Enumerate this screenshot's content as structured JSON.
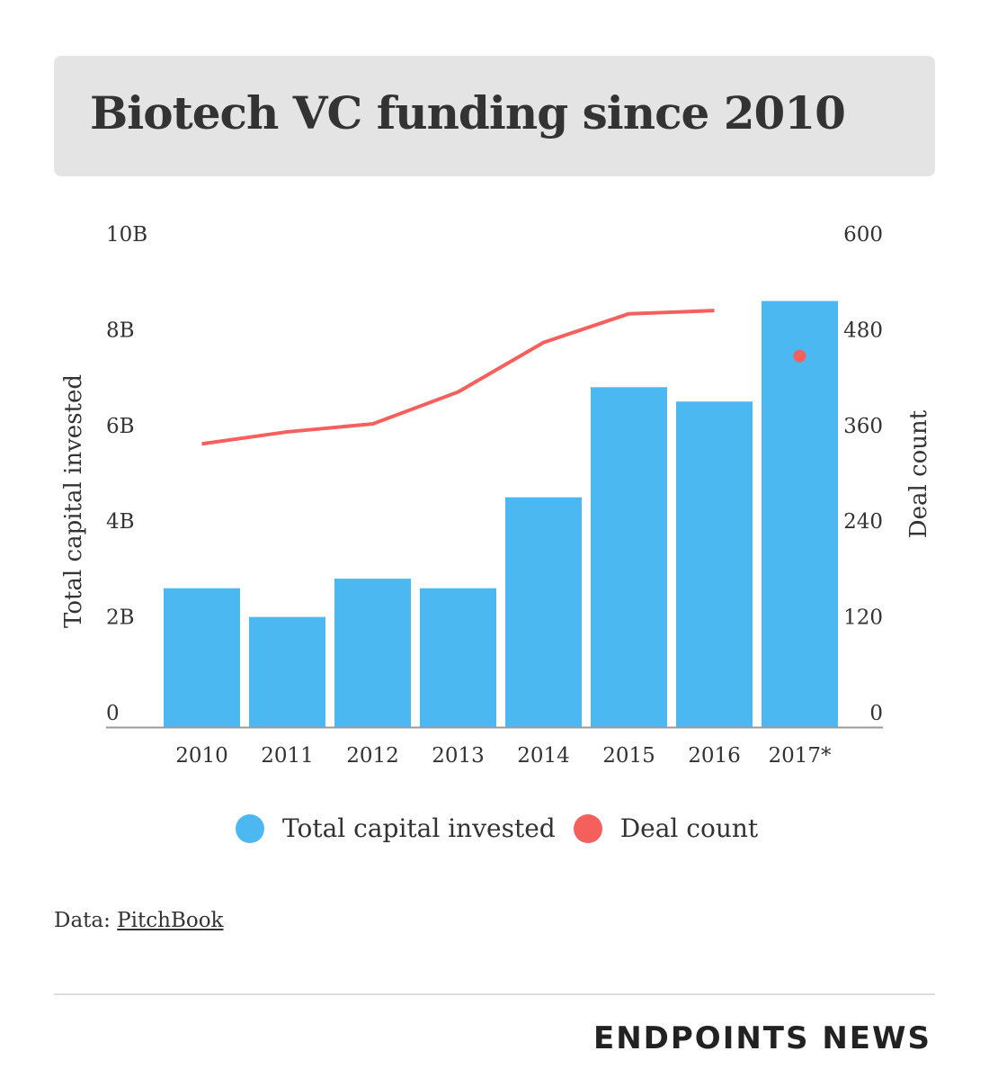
{
  "title": "Biotech VC funding since 2010",
  "chart_data": {
    "type": "bar",
    "categories": [
      "2010",
      "2011",
      "2012",
      "2013",
      "2014",
      "2015",
      "2016",
      "2017*"
    ],
    "series": [
      {
        "name": "Total capital invested",
        "type": "bar",
        "axis": "left",
        "color": "#4bb8f2",
        "values": [
          2.9,
          2.3,
          3.1,
          2.9,
          4.8,
          7.1,
          6.8,
          8.9
        ]
      },
      {
        "name": "Deal count",
        "type": "line",
        "axis": "right",
        "color": "#f5605c",
        "values": [
          355,
          370,
          380,
          420,
          482,
          518,
          522,
          465
        ]
      }
    ],
    "left_axis": {
      "label": "Total capital invested",
      "ylim": [
        0,
        10
      ],
      "ticks": [
        0,
        2,
        4,
        6,
        8,
        10
      ],
      "tick_labels": [
        "0",
        "2B",
        "4B",
        "6B",
        "8B",
        "10B"
      ]
    },
    "right_axis": {
      "label": "Deal count",
      "ylim": [
        0,
        600
      ],
      "ticks": [
        0,
        120,
        240,
        360,
        480,
        600
      ],
      "tick_labels": [
        "0",
        "120",
        "240",
        "360",
        "480",
        "600"
      ]
    },
    "grid": false,
    "legend_position": "bottom-center",
    "note": "2017 deal count shown as a single point"
  },
  "source": {
    "prefix": "Data: ",
    "link_text": "PitchBook"
  },
  "brand": "ENDPOINTS NEWS"
}
